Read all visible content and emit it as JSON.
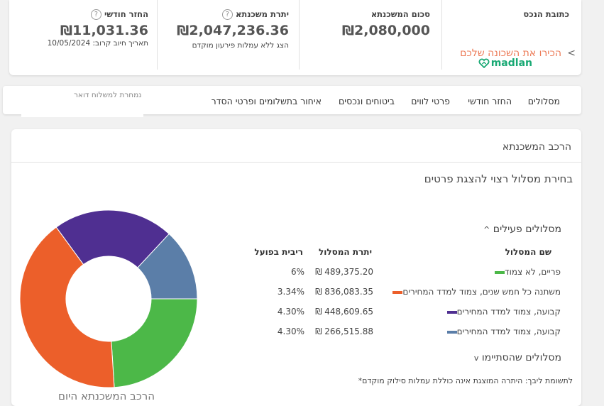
{
  "summary": {
    "address": {
      "label": "כתובת הנכס",
      "link": "הכירו את השכונה שלכם",
      "chevron": "<",
      "logo": "madlan"
    },
    "mortgage_total": {
      "label": "סכום המשכנתא",
      "value": "₪2,080,000"
    },
    "mortgage_balance": {
      "label": "יתרת משכנתא",
      "help": "?",
      "value": "₪2,047,236.36",
      "sub": "הצג ללא עמלות פירעון מוקדם"
    },
    "monthly": {
      "label": "החזר חודשי",
      "help": "?",
      "value": "₪11,031.36",
      "sub": "תאריך חיוב קרוב: 10/05/2024"
    }
  },
  "tabs": [
    "מסלולים",
    "החזר חודשי",
    "פרטי לווים",
    "ביטוחים ונכסים",
    "איחור בתשלומים ופרטי הסדר"
  ],
  "mail_note": "נמחרת למשלוח דואר",
  "panel": {
    "title": "הרכב המשכנתא",
    "select_hint": "בחירת מסלול רצוי להצגת פרטים",
    "active_label": "מסלולים פעילים",
    "active_chevron": "^",
    "closed_label": "מסלולים שהסתיימו",
    "closed_chevron": "v",
    "columns": {
      "name": "שם המסלול",
      "balance": "יתרת המסלול",
      "rate": "ריבית בפועל"
    },
    "footnote": "*לתשומת ליבך: היתרה המוצגת אינה כוללת עמלות סילוק מוקדם",
    "chart_caption": "הרכב המשכנתא היום"
  },
  "tracks": [
    {
      "name": "פריים, לא צמוד",
      "balance": "₪ 489,375.20",
      "rate": "6%",
      "color": "#4cb848"
    },
    {
      "name": "משתנה כל חמש שנים, צמוד למדד המחירים",
      "balance": "₪ 836,083.35",
      "rate": "3.34%",
      "color": "#ec5f2a"
    },
    {
      "name": "קבועה, צמוד למדד המחירים",
      "balance": "₪ 448,609.65",
      "rate": "4.30%",
      "color": "#4f2f91"
    },
    {
      "name": "קבועה, צמוד למדד המחירים",
      "balance": "₪ 266,515.88",
      "rate": "4.30%",
      "color": "#5b7ea8"
    }
  ],
  "chart_data": {
    "type": "pie",
    "categories": [
      "פריים, לא צמוד",
      "משתנה כל חמש שנים, צמוד למדד המחירים",
      "קבועה, צמוד למדד המחירים",
      "קבועה, צמוד למדד המחירים"
    ],
    "values": [
      489375.2,
      836083.35,
      448609.65,
      266515.88
    ],
    "colors": [
      "#4cb848",
      "#ec5f2a",
      "#4f2f91",
      "#5b7ea8"
    ],
    "title": "הרכב המשכנתא היום"
  }
}
